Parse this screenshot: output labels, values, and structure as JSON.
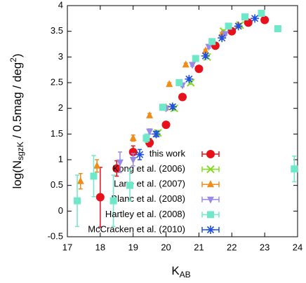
{
  "chart_data": {
    "type": "scatter",
    "xlabel_parts": [
      "K",
      "AB"
    ],
    "ylabel_parts": [
      "log(N",
      "sgzK",
      " / 0.5mag / deg",
      "2",
      ")"
    ],
    "xlim": [
      17,
      24
    ],
    "xticks": [
      17,
      18,
      19,
      20,
      21,
      22,
      23,
      24
    ],
    "ylim": [
      -0.5,
      4
    ],
    "yticks": [
      -0.5,
      0,
      0.5,
      1,
      1.5,
      2,
      2.5,
      3,
      3.5,
      4
    ],
    "legend": "lower right",
    "series": [
      {
        "name": "this work",
        "color": "#e8101a",
        "marker": "circle",
        "x": [
          18.0,
          18.5,
          19.0,
          19.5,
          20.0,
          20.5,
          21.0,
          21.5,
          22.0,
          22.5,
          23.0
        ],
        "values": [
          0.27,
          0.83,
          1.15,
          1.33,
          1.68,
          2.22,
          2.77,
          3.22,
          3.5,
          3.67,
          3.72
        ],
        "errors": [
          0.58,
          0.15,
          0.12,
          0.08,
          0.06,
          0.05,
          0.05,
          0.04,
          0.04,
          0.03,
          0.03
        ]
      },
      {
        "name": "Kong et al. (2006)",
        "color": "#7fdd1a",
        "marker": "x",
        "x": [
          19.75,
          20.25,
          20.75,
          21.25,
          21.75,
          22.25
        ],
        "values": [
          1.52,
          2.0,
          2.5,
          3.0,
          3.5,
          3.62
        ],
        "errors": [
          0.05,
          0.04,
          0.03,
          0.03,
          0.03,
          0.03
        ]
      },
      {
        "name": "Lane et al. (2007)",
        "color": "#f08c1a",
        "marker": "triangle-up",
        "x": [
          17.4,
          17.9,
          19.0,
          19.5,
          20.0,
          20.1,
          20.6,
          21.2,
          21.7,
          22.2
        ],
        "values": [
          0.58,
          0.88,
          1.42,
          1.86,
          2.02,
          2.47,
          2.85,
          3.12,
          3.45,
          3.62
        ],
        "errors": [
          0.15,
          0.12,
          0.06,
          0.04,
          0.03,
          0.03,
          0.03,
          0.03,
          0.03,
          0.03
        ]
      },
      {
        "name": "Blanc et al. (2008)",
        "color": "#9a8ae8",
        "marker": "triangle-down",
        "x": [
          18.6,
          19.0,
          19.5,
          20.0,
          20.5,
          20.8,
          21.3,
          21.8
        ],
        "values": [
          0.95,
          1.0,
          1.55,
          2.0,
          2.45,
          2.85,
          3.2,
          3.45
        ],
        "errors": [
          0.2,
          0.12,
          0.05,
          0.04,
          0.03,
          0.03,
          0.03,
          0.03
        ]
      },
      {
        "name": "Hartley et al. (2008)",
        "color": "#6ee8c8",
        "marker": "square",
        "x": [
          17.3,
          17.8,
          18.4,
          18.9,
          19.4,
          19.9,
          20.4,
          20.9,
          21.4,
          21.9,
          22.4,
          22.9,
          23.4,
          23.9
        ],
        "values": [
          0.2,
          0.68,
          0.2,
          0.5,
          1.42,
          2.02,
          2.5,
          2.97,
          3.3,
          3.6,
          3.78,
          3.85,
          3.55,
          0.82
        ],
        "errors": [
          0.5,
          0.4,
          0.5,
          0.3,
          0.08,
          0.05,
          0.04,
          0.03,
          0.03,
          0.03,
          0.03,
          0.03,
          0.03,
          0.25
        ]
      },
      {
        "name": "McCracken et al. (2010)",
        "color": "#2050e0",
        "marker": "star",
        "x": [
          19.2,
          19.7,
          20.2,
          20.7,
          21.2,
          21.7,
          22.2,
          22.7
        ],
        "values": [
          1.1,
          1.5,
          2.03,
          2.57,
          3.02,
          3.37,
          3.6,
          3.75
        ],
        "errors": [
          0.1,
          0.05,
          0.04,
          0.03,
          0.03,
          0.03,
          0.03,
          0.03
        ]
      }
    ]
  }
}
